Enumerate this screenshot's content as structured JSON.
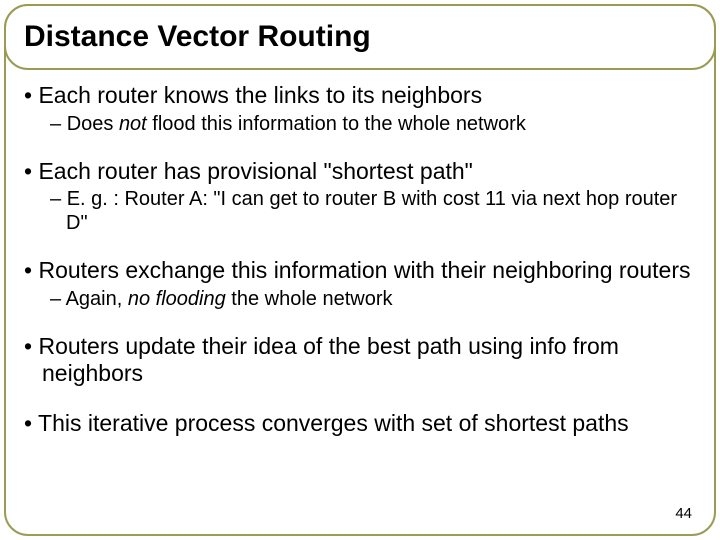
{
  "slide": {
    "title": "Distance Vector Routing",
    "page_number": "44",
    "border_color": "#9b9b56",
    "title_fontsize": 30,
    "body_fontsize_l1": 23,
    "body_fontsize_l2": 20,
    "background_color": "#ffffff",
    "bullets": {
      "b1": "Each router knows the links to its neighbors",
      "b1_sub1_pre": "Does ",
      "b1_sub1_em": "not",
      "b1_sub1_post": " flood this information to the whole network",
      "b2": "Each router has provisional \"shortest path\"",
      "b2_sub1": "E. g. :  Router A: \"I can get to router B with cost 11 via next hop router D\"",
      "b3": "Routers exchange this information with their neighboring routers",
      "b3_sub1_pre": "Again, ",
      "b3_sub1_em": "no flooding",
      "b3_sub1_post": " the whole network",
      "b4": "Routers update their idea of the best path using info from neighbors",
      "b5": "This iterative process converges with set of shortest paths"
    }
  }
}
